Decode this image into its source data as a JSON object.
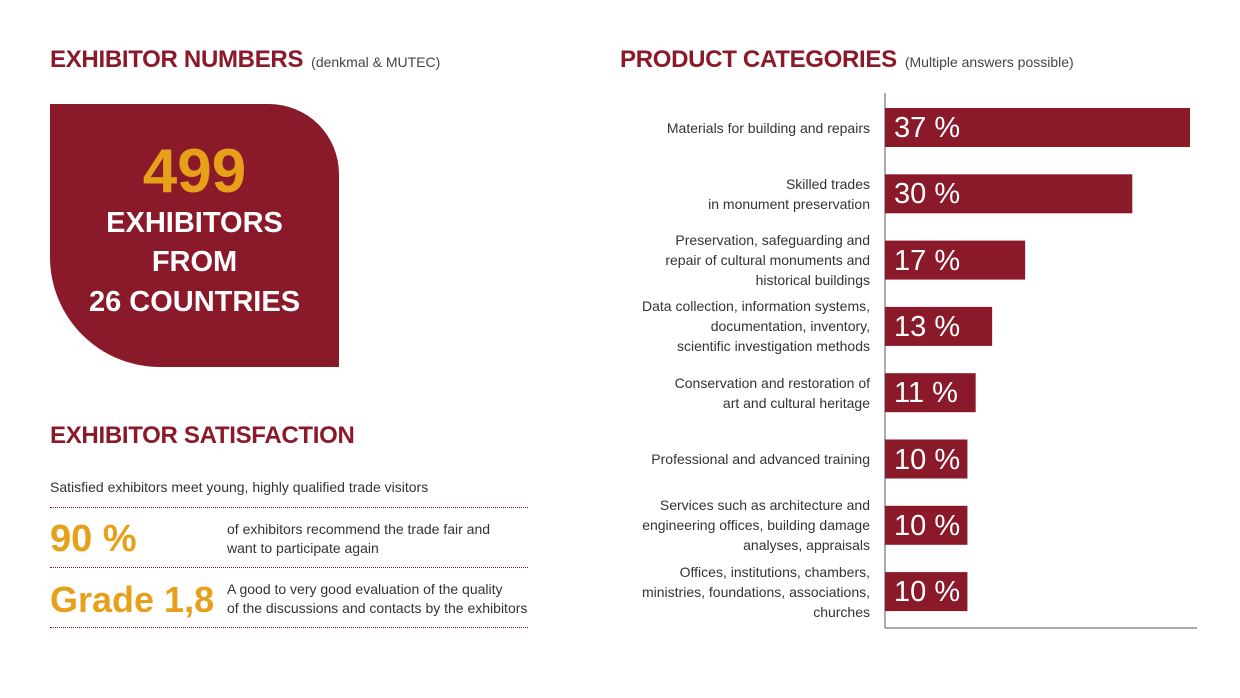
{
  "exhibitor_numbers": {
    "heading": "EXHIBITOR NUMBERS",
    "subheading": "(denkmal & MUTEC)",
    "count": "499",
    "line1": "EXHIBITORS",
    "line2": "FROM",
    "line3": "26 COUNTRIES"
  },
  "satisfaction": {
    "heading": "EXHIBITOR SATISFACTION",
    "intro": "Satisfied exhibitors meet young, highly qualified trade visitors",
    "stats": [
      {
        "value": "90 %",
        "text_line1": "of exhibitors recommend the trade fair and",
        "text_line2": "want to participate again"
      },
      {
        "value": "Grade 1,8",
        "text_line1": "A good to very good evaluation of the quality",
        "text_line2": "of the discussions and contacts by the exhibitors"
      }
    ]
  },
  "product_categories": {
    "heading": "PRODUCT CATEGORIES",
    "subheading": "(Multiple answers possible)"
  },
  "colors": {
    "brand_red": "#8a1a2a",
    "accent_gold": "#e6a01a"
  },
  "chart_data": {
    "type": "bar",
    "orientation": "horizontal",
    "categories": [
      [
        "Materials for building and repairs"
      ],
      [
        "Skilled trades",
        "in monument preservation"
      ],
      [
        "Preservation, safeguarding and",
        "repair of cultural monuments and",
        "historical buildings"
      ],
      [
        "Data collection, information systems,",
        "documentation, inventory,",
        "scientific investigation methods"
      ],
      [
        "Conservation and restoration of",
        "art and cultural heritage"
      ],
      [
        "Professional and advanced training"
      ],
      [
        "Services such as architecture and",
        "engineering offices, building damage",
        "analyses, appraisals"
      ],
      [
        "Offices, institutions, chambers,",
        "ministries, foundations, associations,",
        "churches"
      ]
    ],
    "values": [
      37,
      30,
      17,
      13,
      11,
      10,
      10,
      10
    ],
    "value_labels": [
      "37 %",
      "30 %",
      "17 %",
      "13 %",
      "11 %",
      "10 %",
      "10 %",
      "10 %"
    ],
    "unit": "%",
    "grid": false
  }
}
